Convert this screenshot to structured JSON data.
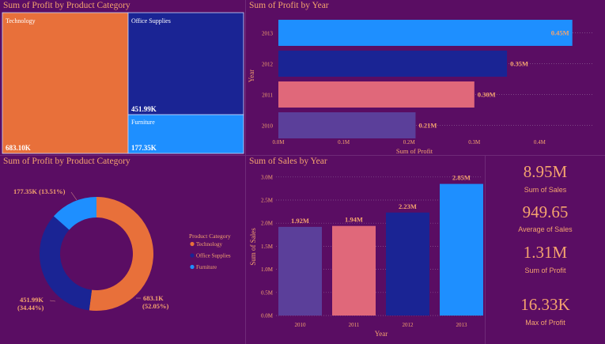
{
  "colors": {
    "orange": "#e8703a",
    "navy": "#1a2494",
    "blue": "#1e8fff",
    "purple": "#5b3f9a",
    "pink": "#e0687a",
    "text": "#f5a46e",
    "bg": "#5a0d63"
  },
  "treemap": {
    "title": "Sum of Profit by Product Category",
    "items": [
      {
        "label": "Technology",
        "value": "683.10K",
        "color": "#e8703a"
      },
      {
        "label": "Office Supplies",
        "value": "451.99K",
        "color": "#1a2494"
      },
      {
        "label": "Furniture",
        "value": "177.35K",
        "color": "#1e8fff"
      }
    ]
  },
  "profit_year": {
    "title": "Sum of Profit by Year"
  },
  "donut": {
    "title": "Sum of Profit by Product Category",
    "legend_title": "Product Category",
    "labels": {
      "furniture": "177.35K (13.51%)",
      "office_line1": "451.99K",
      "office_line2": "(34.44%)",
      "tech_line1": "683.1K",
      "tech_line2": "(52.05%)"
    }
  },
  "sales_year": {
    "title": "Sum of Sales by Year"
  },
  "kpis": [
    {
      "value": "8.95M",
      "label": "Sum of Sales"
    },
    {
      "value": "949.65",
      "label": "Average of Sales"
    },
    {
      "value": "1.31M",
      "label": "Sum of Profit"
    },
    {
      "value": "16.33K",
      "label": "Max of Profit"
    }
  ],
  "chart_data": [
    {
      "type": "treemap",
      "title": "Sum of Profit by Product Category",
      "categories": [
        "Technology",
        "Office Supplies",
        "Furniture"
      ],
      "values": [
        683100,
        451990,
        177350
      ]
    },
    {
      "type": "bar",
      "orientation": "horizontal",
      "title": "Sum of Profit by Year",
      "categories": [
        "2013",
        "2012",
        "2011",
        "2010"
      ],
      "values": [
        0.45,
        0.35,
        0.3,
        0.21
      ],
      "data_labels": [
        "0.45M",
        "0.35M",
        "0.30M",
        "0.21M"
      ],
      "colors": [
        "#1e8fff",
        "#1a2494",
        "#e0687a",
        "#5b3f9a"
      ],
      "xlabel": "Sum of Profit",
      "ylabel": "Year",
      "xlim": [
        0,
        0.45
      ],
      "xticks": [
        "0.0M",
        "0.1M",
        "0.2M",
        "0.3M",
        "0.4M"
      ]
    },
    {
      "type": "pie",
      "donut": true,
      "title": "Sum of Profit by Product Category",
      "categories": [
        "Technology",
        "Office Supplies",
        "Furniture"
      ],
      "values": [
        683.1,
        451.99,
        177.35
      ],
      "percents": [
        52.05,
        34.44,
        13.51
      ],
      "colors": [
        "#e8703a",
        "#1a2494",
        "#1e8fff"
      ],
      "legend_title": "Product Category"
    },
    {
      "type": "bar",
      "title": "Sum of Sales by Year",
      "categories": [
        "2010",
        "2011",
        "2012",
        "2013"
      ],
      "values": [
        1.92,
        1.94,
        2.23,
        2.85
      ],
      "data_labels": [
        "1.92M",
        "1.94M",
        "2.23M",
        "2.85M"
      ],
      "colors": [
        "#5b3f9a",
        "#e0687a",
        "#1a2494",
        "#1e8fff"
      ],
      "xlabel": "Year",
      "ylabel": "Sum of Sales",
      "ylim": [
        0,
        3.0
      ],
      "yticks": [
        "0.0M",
        "0.5M",
        "1.0M",
        "1.5M",
        "2.0M",
        "2.5M",
        "3.0M"
      ]
    }
  ]
}
